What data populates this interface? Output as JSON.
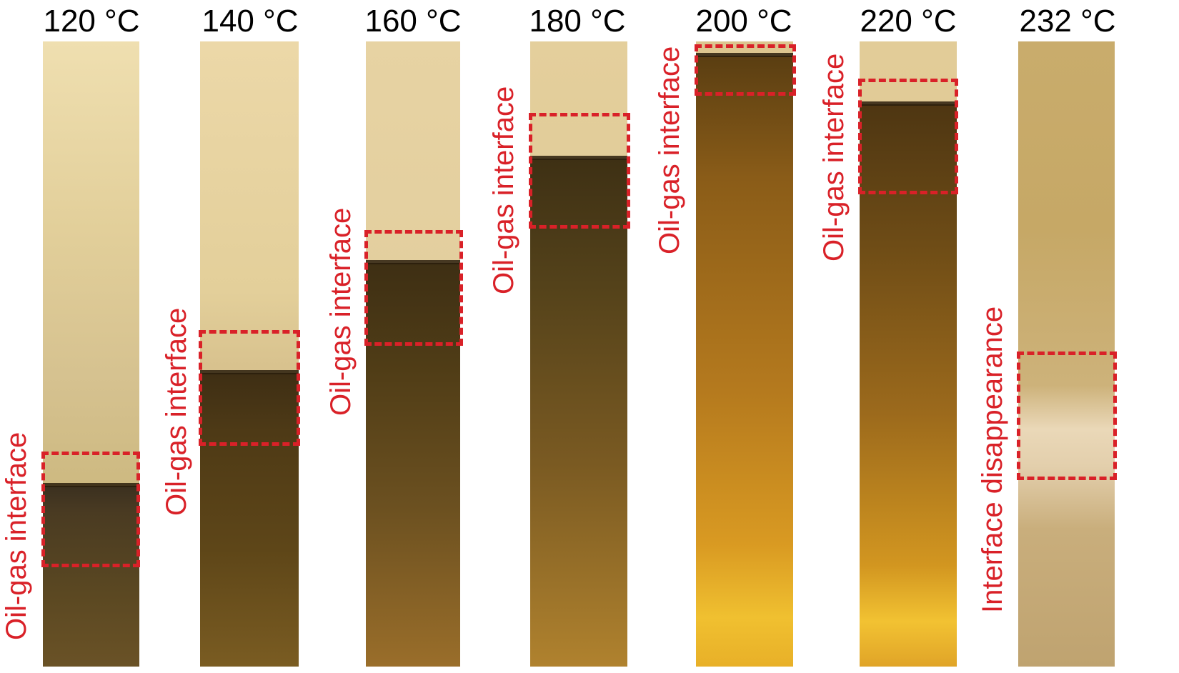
{
  "figure": {
    "panels": [
      {
        "temperature": "120 °C",
        "label": "Oil-gas interface"
      },
      {
        "temperature": "140 °C",
        "label": "Oil-gas interface"
      },
      {
        "temperature": "160 °C",
        "label": "Oil-gas interface"
      },
      {
        "temperature": "180 °C",
        "label": "Oil-gas interface"
      },
      {
        "temperature": "200 °C",
        "label": "Oil-gas interface"
      },
      {
        "temperature": "220 °C",
        "label": "Oil-gas interface"
      },
      {
        "temperature": "232 °C",
        "label": "Interface disappearance"
      }
    ],
    "colors": {
      "annotation": "#d92128",
      "gas_phase": "#e4d0a0",
      "oil_phase_dark": "#5a4214",
      "oil_phase_hot": "#e0a020"
    }
  }
}
